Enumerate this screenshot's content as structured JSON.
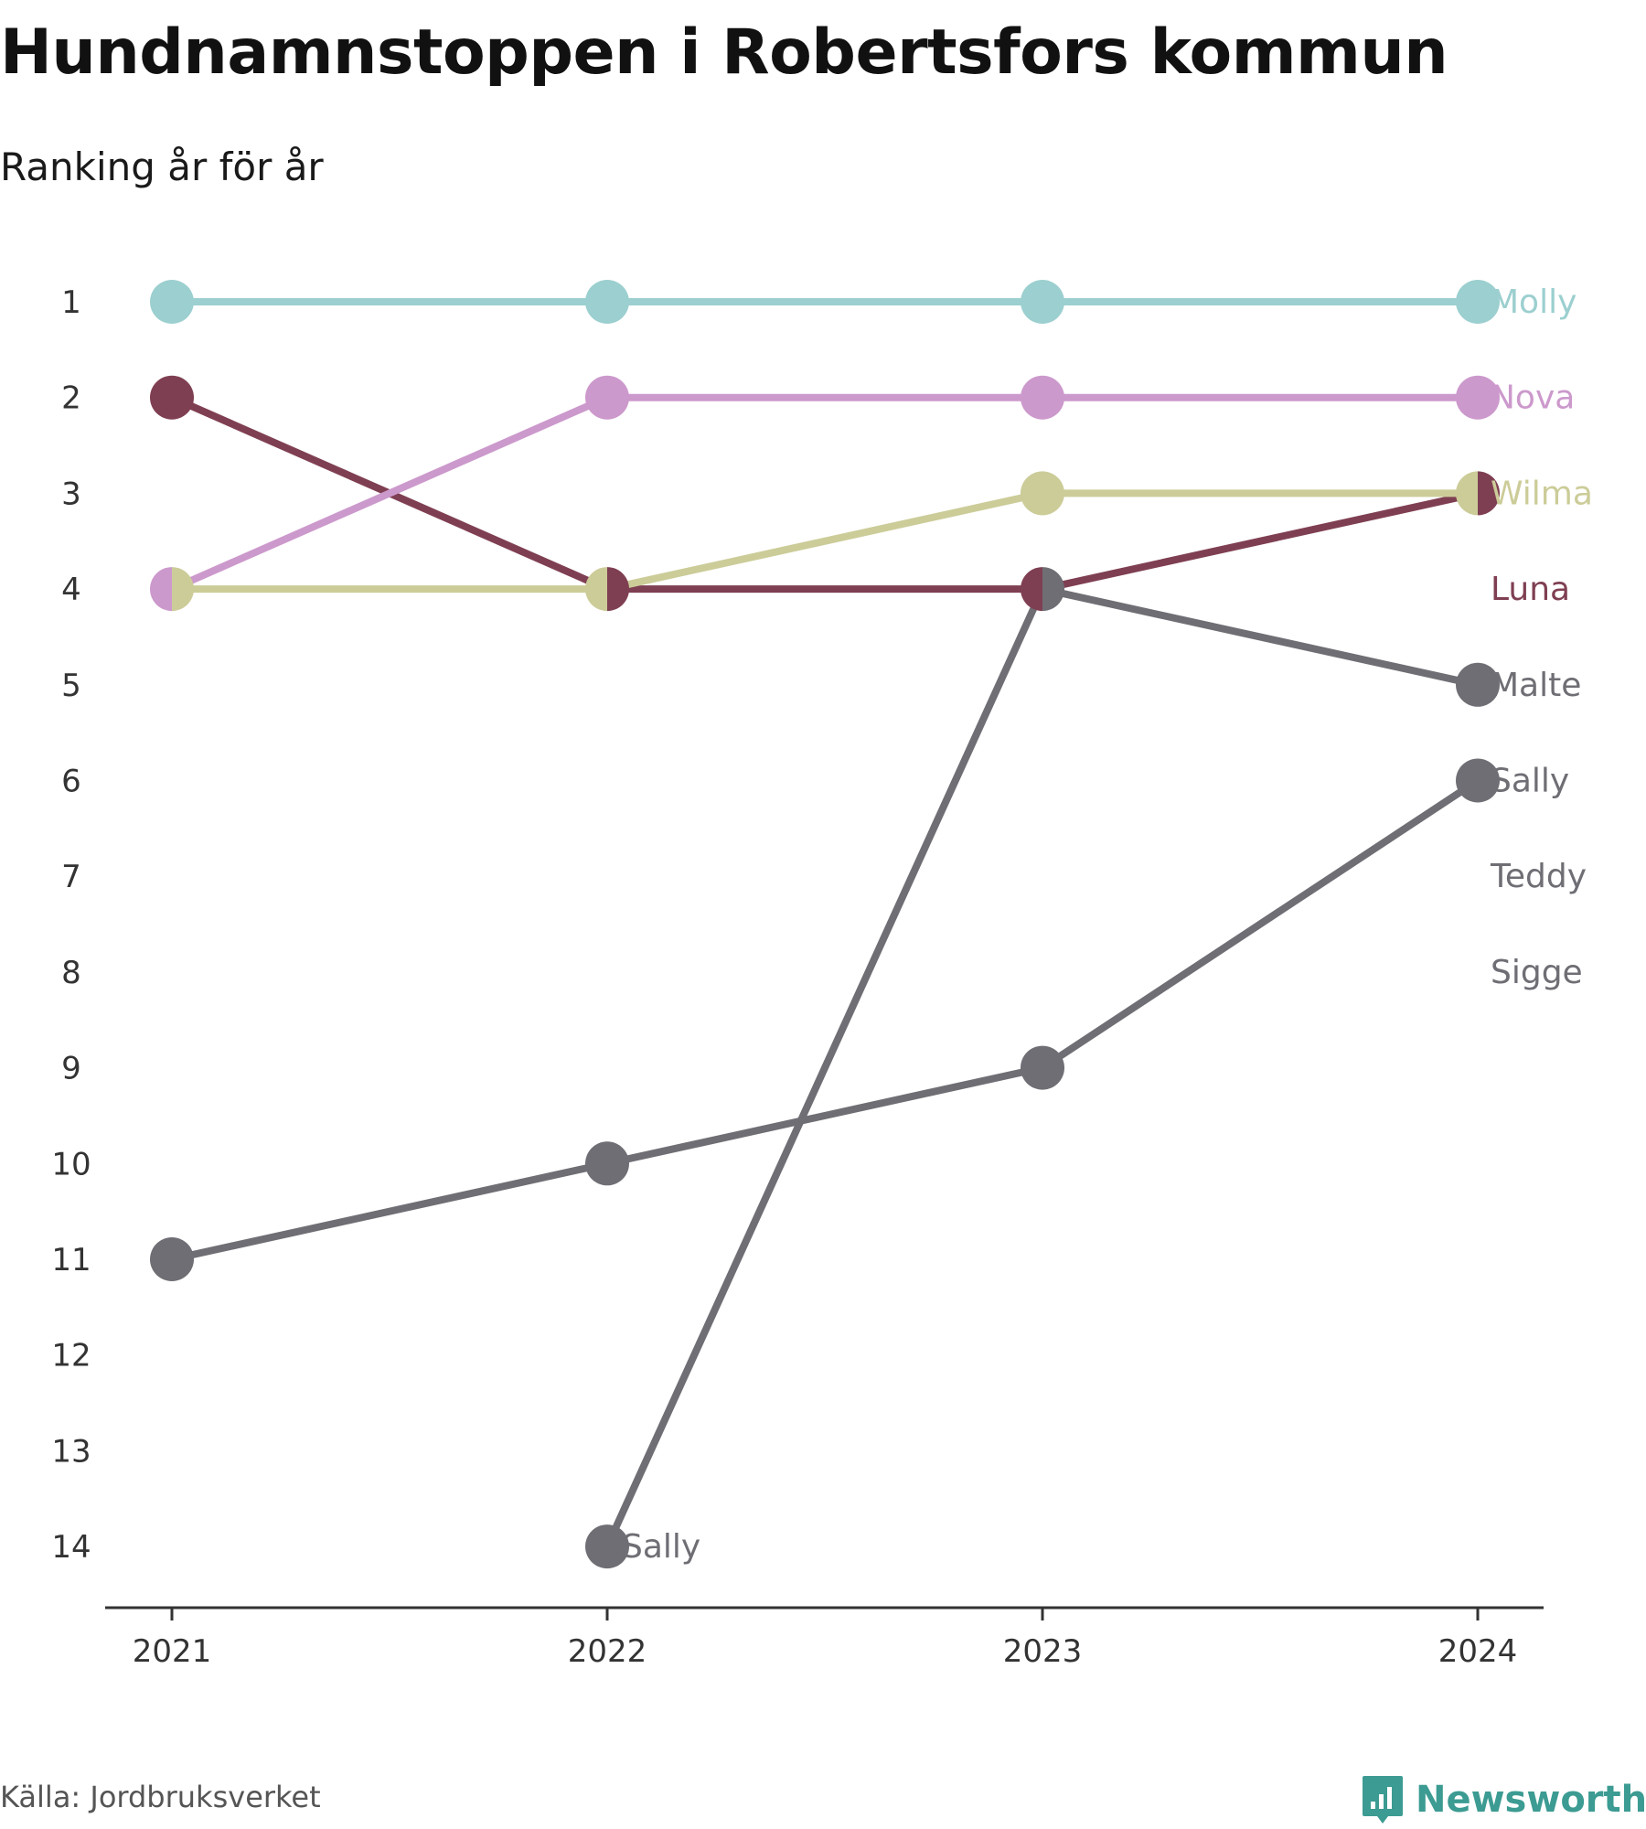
{
  "title": "Hundnamnstoppen i Robertsfors kommun",
  "subtitle": "Ranking år för år",
  "source": "Källa: Jordbruksverket",
  "brand": {
    "name": "Newsworthy",
    "icon": "newsworthy-logo-icon",
    "color": "#3c9b92"
  },
  "chart_data": {
    "type": "line",
    "title": "Hundnamnstoppen i Robertsfors kommun",
    "subtitle": "Ranking år för år",
    "xlabel": "",
    "ylabel": "",
    "x": [
      "2021",
      "2022",
      "2023",
      "2024"
    ],
    "y_ticks": [
      "1",
      "2",
      "3",
      "4",
      "5",
      "6",
      "7",
      "8",
      "9",
      "10",
      "11",
      "12",
      "13",
      "14"
    ],
    "ylim": [
      14,
      1
    ],
    "y_reversed": true,
    "grid": false,
    "legend": "direct labels at right end of lines",
    "series": [
      {
        "name": "Molly",
        "color": "#9ccfcf",
        "values": [
          1,
          1,
          1,
          1
        ]
      },
      {
        "name": "Nova",
        "color": "#cc99cc",
        "values": [
          4,
          2,
          2,
          2
        ]
      },
      {
        "name": "Wilma",
        "color": "#cccc99",
        "values": [
          4,
          4,
          3,
          3
        ]
      },
      {
        "name": "Luna",
        "color": "#7f3f52",
        "values": [
          2,
          4,
          4,
          3
        ]
      },
      {
        "name": "Malte",
        "color": "#6e6e74",
        "values": [
          null,
          14,
          4,
          5
        ]
      },
      {
        "name": "Sally",
        "color": "#6e6e74",
        "values": [
          11,
          10,
          9,
          6
        ]
      }
    ],
    "labels": [
      {
        "text": "Molly",
        "color": "#9ccfcf"
      },
      {
        "text": "Nova",
        "color": "#cc99cc"
      },
      {
        "text": "Wilma",
        "color": "#cccc99"
      },
      {
        "text": "Luna",
        "color": "#7f3f52"
      },
      {
        "text": "Malte",
        "color": "#6e6e74"
      },
      {
        "text": "Sally",
        "color": "#6e6e74"
      },
      {
        "text": "Teddy",
        "color": "#6e6e74"
      },
      {
        "text": "Sigge",
        "color": "#6e6e74"
      },
      {
        "text": "Sally",
        "color": "#6e6e74"
      }
    ]
  }
}
